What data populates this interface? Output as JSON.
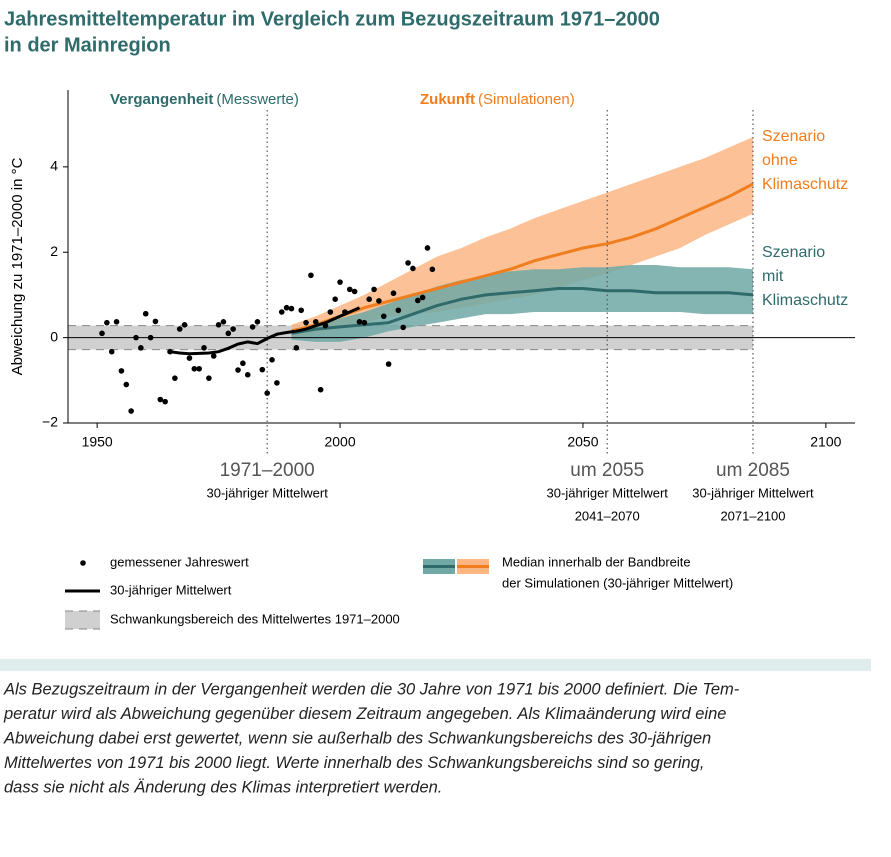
{
  "chart_data": {
    "type": "line",
    "title": [
      "Jahresmitteltemperatur im Vergleich zum Bezugszeitraum 1971–2000",
      "in der Mainregion"
    ],
    "y_label": "Abweichung zu 1971–2000 in °C",
    "xlim": [
      1944,
      2106
    ],
    "ylim": [
      -2,
      5.8
    ],
    "xticks": [
      1950,
      2000,
      2050,
      2100
    ],
    "yticks": [
      {
        "value": -2,
        "label": "−2"
      },
      0,
      2,
      4
    ],
    "periods": [
      {
        "label": "Vergangenheit",
        "note": "(Messwerte)",
        "color": "#2f6b6b"
      },
      {
        "label": "Zukunft",
        "note": "(Simulationen)",
        "color": "#f07d1e"
      }
    ],
    "measured": {
      "name": "gemessener Jahreswert",
      "color": "#000000",
      "x": [
        1951,
        1952,
        1953,
        1954,
        1955,
        1956,
        1957,
        1958,
        1959,
        1960,
        1961,
        1962,
        1963,
        1964,
        1965,
        1966,
        1967,
        1968,
        1969,
        1970,
        1971,
        1972,
        1973,
        1974,
        1975,
        1976,
        1977,
        1978,
        1979,
        1980,
        1981,
        1982,
        1983,
        1984,
        1985,
        1986,
        1987,
        1988,
        1989,
        1990,
        1991,
        1992,
        1993,
        1994,
        1995,
        1996,
        1997,
        1998,
        1999,
        2000,
        2001,
        2002,
        2003,
        2004,
        2005,
        2006,
        2007,
        2008,
        2009,
        2010,
        2011,
        2012,
        2013,
        2014,
        2015,
        2016,
        2017,
        2018,
        2019
      ],
      "values": [
        0.1,
        0.35,
        -0.33,
        0.37,
        -0.78,
        -1.1,
        -1.72,
        0.0,
        -0.24,
        0.56,
        0.0,
        0.38,
        -1.45,
        -1.5,
        -0.33,
        -0.95,
        0.2,
        0.3,
        -0.48,
        -0.73,
        -0.73,
        -0.24,
        -0.95,
        -0.43,
        0.3,
        0.37,
        0.1,
        0.2,
        -0.76,
        -0.6,
        -0.87,
        0.25,
        0.37,
        -0.75,
        -1.3,
        -0.52,
        -1.06,
        0.6,
        0.7,
        0.68,
        -0.24,
        0.64,
        0.35,
        1.46,
        0.37,
        -1.22,
        0.28,
        0.6,
        0.9,
        1.3,
        0.6,
        1.13,
        1.08,
        0.37,
        0.35,
        0.9,
        1.13,
        0.86,
        0.5,
        -0.62,
        1.04,
        0.64,
        0.24,
        1.75,
        1.62,
        0.87,
        0.94,
        2.1,
        1.6
      ]
    },
    "mean": {
      "name": "30-jähriger Mittelwert",
      "color": "#000000",
      "x": [
        1965,
        1967,
        1969,
        1971,
        1973,
        1975,
        1977,
        1979,
        1981,
        1983,
        1985,
        1987,
        1989,
        1991,
        1993,
        1995,
        1997,
        1999,
        2001,
        2003,
        2004
      ],
      "values": [
        -0.33,
        -0.36,
        -0.38,
        -0.37,
        -0.36,
        -0.33,
        -0.25,
        -0.15,
        -0.1,
        -0.14,
        -0.02,
        0.08,
        0.12,
        0.15,
        0.2,
        0.28,
        0.35,
        0.45,
        0.55,
        0.65,
        0.7
      ]
    },
    "reference_band": {
      "name": "Schwankungsbereich des Mittelwertes 1971–2000",
      "color": "#d0d0d0",
      "line_color": "#888888",
      "lower": -0.28,
      "upper": 0.28,
      "x_end": 2085
    },
    "median_legend": [
      "Median innerhalb der Bandbreite",
      "der Simulationen (30-jähriger Mittelwert)"
    ],
    "scenarios": [
      {
        "name": [
          "Szenario",
          "ohne",
          "Klimaschutz"
        ],
        "color": "#f07d1e",
        "band_color": "#fbb684",
        "x": [
          1990,
          1995,
          2000,
          2005,
          2010,
          2015,
          2020,
          2025,
          2030,
          2035,
          2040,
          2045,
          2050,
          2055,
          2060,
          2065,
          2070,
          2075,
          2080,
          2085
        ],
        "values": [
          0.15,
          0.3,
          0.5,
          0.7,
          0.85,
          1.0,
          1.15,
          1.3,
          1.45,
          1.6,
          1.8,
          1.95,
          2.1,
          2.2,
          2.35,
          2.55,
          2.8,
          3.05,
          3.3,
          3.6
        ],
        "lower": [
          0.0,
          0.1,
          0.2,
          0.35,
          0.5,
          0.55,
          0.6,
          0.7,
          0.8,
          0.9,
          1.0,
          1.15,
          1.35,
          1.5,
          1.7,
          1.9,
          2.1,
          2.4,
          2.65,
          2.9
        ],
        "upper": [
          0.3,
          0.5,
          0.75,
          1.0,
          1.3,
          1.6,
          1.9,
          2.1,
          2.35,
          2.55,
          2.8,
          3.0,
          3.2,
          3.4,
          3.6,
          3.8,
          4.0,
          4.2,
          4.45,
          4.7
        ]
      },
      {
        "name": [
          "Szenario",
          "mit",
          "Klimaschutz"
        ],
        "color": "#2f6b6b",
        "band_color": "#6fa8a4",
        "x": [
          1990,
          1995,
          2000,
          2005,
          2010,
          2015,
          2020,
          2025,
          2030,
          2035,
          2040,
          2045,
          2050,
          2055,
          2060,
          2065,
          2070,
          2075,
          2080,
          2085
        ],
        "values": [
          0.1,
          0.2,
          0.25,
          0.3,
          0.35,
          0.55,
          0.75,
          0.9,
          1.0,
          1.05,
          1.1,
          1.15,
          1.15,
          1.1,
          1.1,
          1.05,
          1.05,
          1.05,
          1.05,
          1.0
        ],
        "lower": [
          -0.05,
          -0.1,
          -0.1,
          0.0,
          0.15,
          0.25,
          0.35,
          0.45,
          0.55,
          0.55,
          0.6,
          0.6,
          0.6,
          0.6,
          0.6,
          0.6,
          0.6,
          0.55,
          0.55,
          0.55
        ],
        "upper": [
          0.2,
          0.3,
          0.45,
          0.6,
          0.8,
          1.0,
          1.2,
          1.35,
          1.45,
          1.55,
          1.6,
          1.6,
          1.65,
          1.65,
          1.7,
          1.7,
          1.65,
          1.65,
          1.65,
          1.6
        ]
      }
    ],
    "markers": [
      {
        "x": 1985,
        "lines": [
          "1971–2000",
          "30-jähriger Mittelwert"
        ]
      },
      {
        "x": 2055,
        "lines": [
          "um 2055",
          "30-jähriger Mittelwert",
          "2041–2070"
        ]
      },
      {
        "x": 2085,
        "lines": [
          "um 2085",
          "30-jähriger Mittelwert",
          "2071–2100"
        ]
      }
    ]
  },
  "caption": [
    "Als Bezugszeitraum in der Vergangenheit werden die 30 Jahre von 1971 bis 2000 definiert. Die Tem-",
    "peratur wird als Abweichung gegenüber diesem Zeitraum angegeben. Als Klimaänderung wird eine",
    "Abweichung dabei erst gewertet, wenn sie außerhalb des Schwankungsbereichs des 30-jährigen",
    "Mittelwertes von 1971 bis 2000 liegt. Werte innerhalb des Schwankungsbereichs sind so gering,",
    "dass sie nicht als Änderung des Klimas interpretiert werden."
  ]
}
